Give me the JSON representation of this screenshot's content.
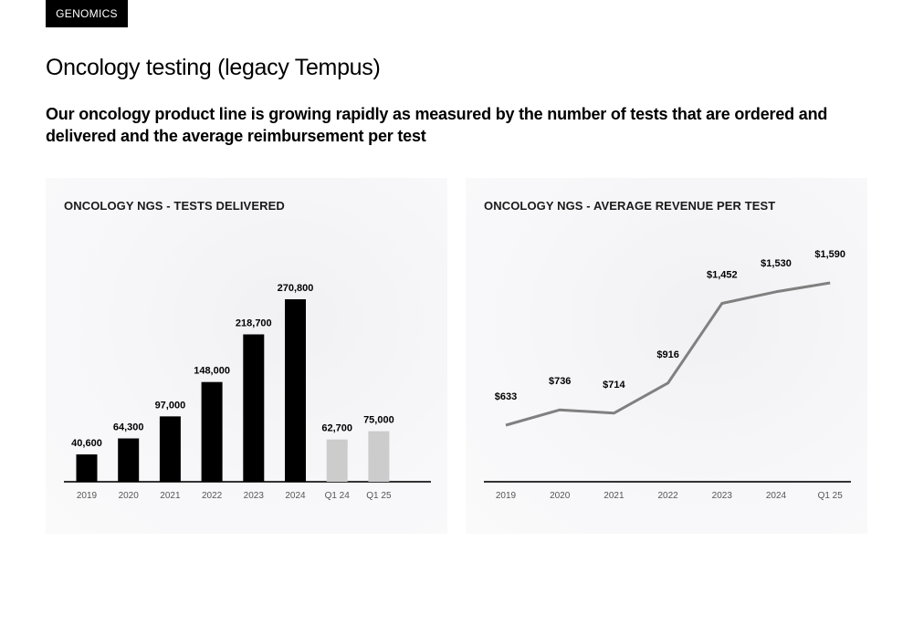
{
  "header": {
    "tag": "GENOMICS",
    "title": "Oncology testing (legacy Tempus)",
    "subtitle": "Our oncology product line is growing rapidly as measured by the number of tests that are ordered and delivered and the average reimbursement per test"
  },
  "colors": {
    "bar_full_year": "#000000",
    "bar_quarter": "#cccccc",
    "line": "#808080",
    "axis": "#333333"
  },
  "chart_data": [
    {
      "type": "bar",
      "title": "ONCOLOGY NGS - TESTS DELIVERED",
      "categories": [
        "2019",
        "2020",
        "2021",
        "2022",
        "2023",
        "2024",
        "Q1 24",
        "Q1 25"
      ],
      "values": [
        40600,
        64300,
        97000,
        148000,
        218700,
        270800,
        62700,
        75000
      ],
      "value_labels": [
        "40,600",
        "64,300",
        "97,000",
        "148,000",
        "218,700",
        "270,800",
        "62,700",
        "75,000"
      ],
      "bar_colors": [
        "#000000",
        "#000000",
        "#000000",
        "#000000",
        "#000000",
        "#000000",
        "#cccccc",
        "#cccccc"
      ],
      "xlabel": "",
      "ylabel": "",
      "ylim": [
        0,
        270800
      ],
      "grid": false,
      "legend": "none"
    },
    {
      "type": "line",
      "title": "ONCOLOGY NGS - AVERAGE REVENUE PER TEST",
      "categories": [
        "2019",
        "2020",
        "2021",
        "2022",
        "2023",
        "2024",
        "Q1 25"
      ],
      "values": [
        633,
        736,
        714,
        916,
        1452,
        1530,
        1590
      ],
      "value_labels": [
        "$633",
        "$736",
        "$714",
        "$916",
        "$1,452",
        "$1,530",
        "$1,590"
      ],
      "xlabel": "",
      "ylabel": "",
      "ylim": [
        633,
        1590
      ],
      "grid": false,
      "legend": "none"
    }
  ]
}
